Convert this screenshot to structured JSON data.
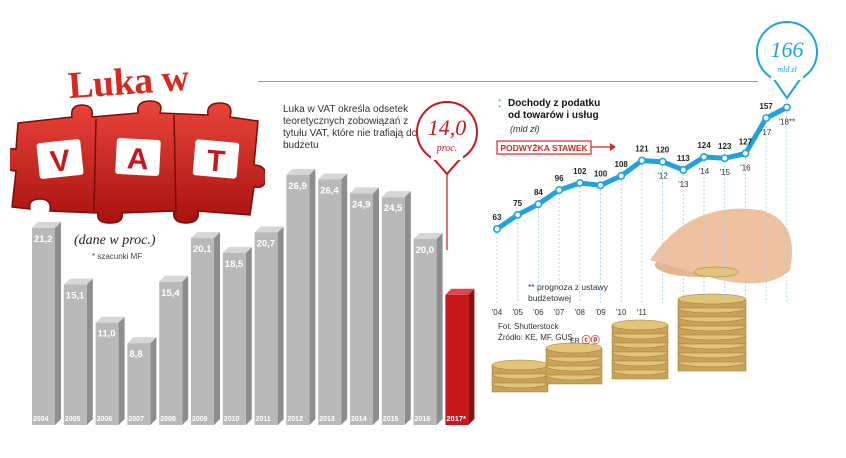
{
  "header": {
    "title": "Luka w",
    "puzzle_letters": [
      "V",
      "A",
      "T"
    ],
    "description": "Luka w VAT określa odsetek teoretycznych zobowiązań z tytułu VAT, które nie trafiają do budżetu",
    "units": "(dane w proc.)",
    "footnote": "* szacunki MF"
  },
  "highlight_bar": {
    "value": "14,0",
    "unit": "proc."
  },
  "highlight_line": {
    "value": "166",
    "unit": "mld zł"
  },
  "line_panel": {
    "title_line1": "Dochody z podatku",
    "title_line2": "od towarów i usług",
    "unit": "(mld zł)",
    "tax_hike_label": "PODWYŻKA STAWEK",
    "footnote": "** prognoza z ustawy budżetowej"
  },
  "credits": {
    "photo": "Fot. Shutterstock",
    "source": "Źródło: KE, MF, GUS",
    "author": "ER"
  },
  "colors": {
    "accent_red": "#d8281f",
    "bar_grey": "#b8b8b8",
    "line_blue": "#1fa3e0",
    "highlight_bar_red": "#c8161d"
  },
  "chart_data": [
    {
      "type": "bar",
      "categories": [
        "2004",
        "2005",
        "2006",
        "2007",
        "2008",
        "2009",
        "2010",
        "2011",
        "2012",
        "2013",
        "2014",
        "2015",
        "2016",
        "2017*"
      ],
      "value_labels": [
        "21,2",
        "15,1",
        "11,0",
        "8,8",
        "15,4",
        "20,1",
        "18,5",
        "20,7",
        "26,9",
        "26,4",
        "24,9",
        "24,5",
        "20,0",
        ""
      ],
      "values": [
        21.2,
        15.1,
        11.0,
        8.8,
        15.4,
        20.1,
        18.5,
        20.7,
        26.9,
        26.4,
        24.9,
        24.5,
        20.0,
        14.0
      ],
      "ylabel": "(dane w proc.)",
      "highlight_index": 13
    },
    {
      "type": "line",
      "x": [
        "'04",
        "'05",
        "'06",
        "'07",
        "'08",
        "'09",
        "'10",
        "'11",
        "'12",
        "'13",
        "'14",
        "'15",
        "'16",
        "'17",
        "'18**"
      ],
      "values": [
        63,
        75,
        84,
        96,
        102,
        100,
        108,
        121,
        120,
        113,
        124,
        123,
        127,
        157,
        166
      ],
      "value_labels": [
        "63",
        "75",
        "84",
        "96",
        "102",
        "100",
        "108",
        "121",
        "120",
        "113",
        "124",
        "123",
        "127",
        "157",
        ""
      ],
      "title": "Dochody z podatku od towarów i usług",
      "ylabel": "(mld zł)"
    }
  ]
}
